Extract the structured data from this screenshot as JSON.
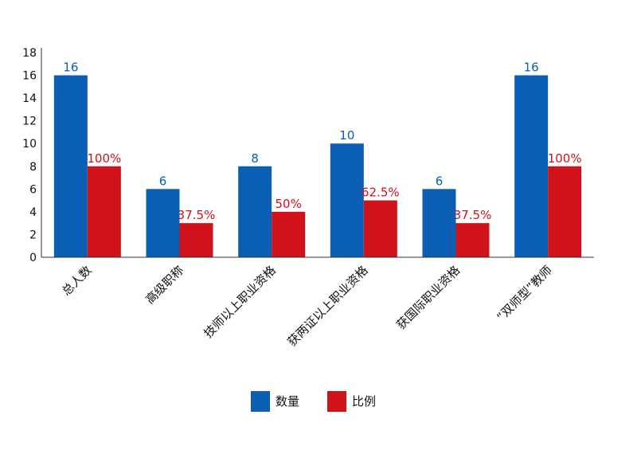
{
  "chart_data": {
    "type": "bar",
    "categories": [
      "总人数",
      "高级职称",
      "技师以上职业资格",
      "获两证以上职业资格",
      "获国际职业资格",
      "“双师型”教师"
    ],
    "series": [
      {
        "name": "数量",
        "color": "#0a5fb4",
        "values": [
          16,
          6,
          8,
          10,
          6,
          16
        ],
        "labels": [
          "16",
          "6",
          "8",
          "10",
          "6",
          "16"
        ]
      },
      {
        "name": "比例",
        "color": "#d0121b",
        "values": [
          8,
          3,
          4,
          5,
          3,
          8
        ],
        "labels": [
          "100%",
          "37.5%",
          "50%",
          "62.5%",
          "37.5%",
          "100%"
        ]
      }
    ],
    "yticks": [
      "0",
      "2",
      "4",
      "6",
      "8",
      "10",
      "12",
      "14",
      "16",
      "18"
    ],
    "ylim": [
      0,
      18
    ],
    "title": "",
    "xlabel": "",
    "ylabel": "",
    "legend_position": "bottom-center",
    "grid": false
  }
}
